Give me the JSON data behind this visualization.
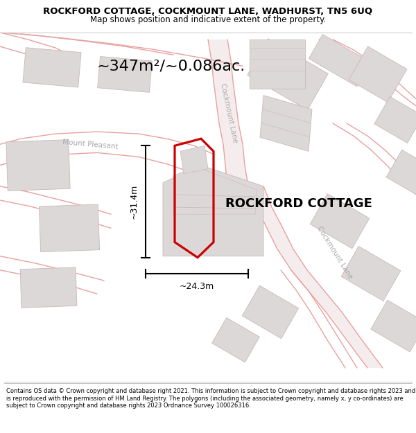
{
  "title": "ROCKFORD COTTAGE, COCKMOUNT LANE, WADHURST, TN5 6UQ",
  "subtitle": "Map shows position and indicative extent of the property.",
  "area_text": "~347m²/~0.086ac.",
  "property_name": "ROCKFORD COTTAGE",
  "dim_width": "~24.3m",
  "dim_height": "~31.4m",
  "map_bg": "#faf5f5",
  "footer_text": "Contains OS data © Crown copyright and database right 2021. This information is subject to Crown copyright and database rights 2023 and is reproduced with the permission of HM Land Registry. The polygons (including the associated geometry, namely x, y co-ordinates) are subject to Crown copyright and database rights 2023 Ordnance Survey 100026316.",
  "road_color": "#e8a0a0",
  "road_fill": "#f5eded",
  "building_fill": "#ddd8d8",
  "building_outline": "#c8b8b8",
  "property_fill": "#e8e0e0",
  "property_outline": "#cc0000",
  "title_fontsize": 9.5,
  "subtitle_fontsize": 8.5,
  "area_fontsize": 16,
  "property_fontsize": 13,
  "dim_fontsize": 9
}
